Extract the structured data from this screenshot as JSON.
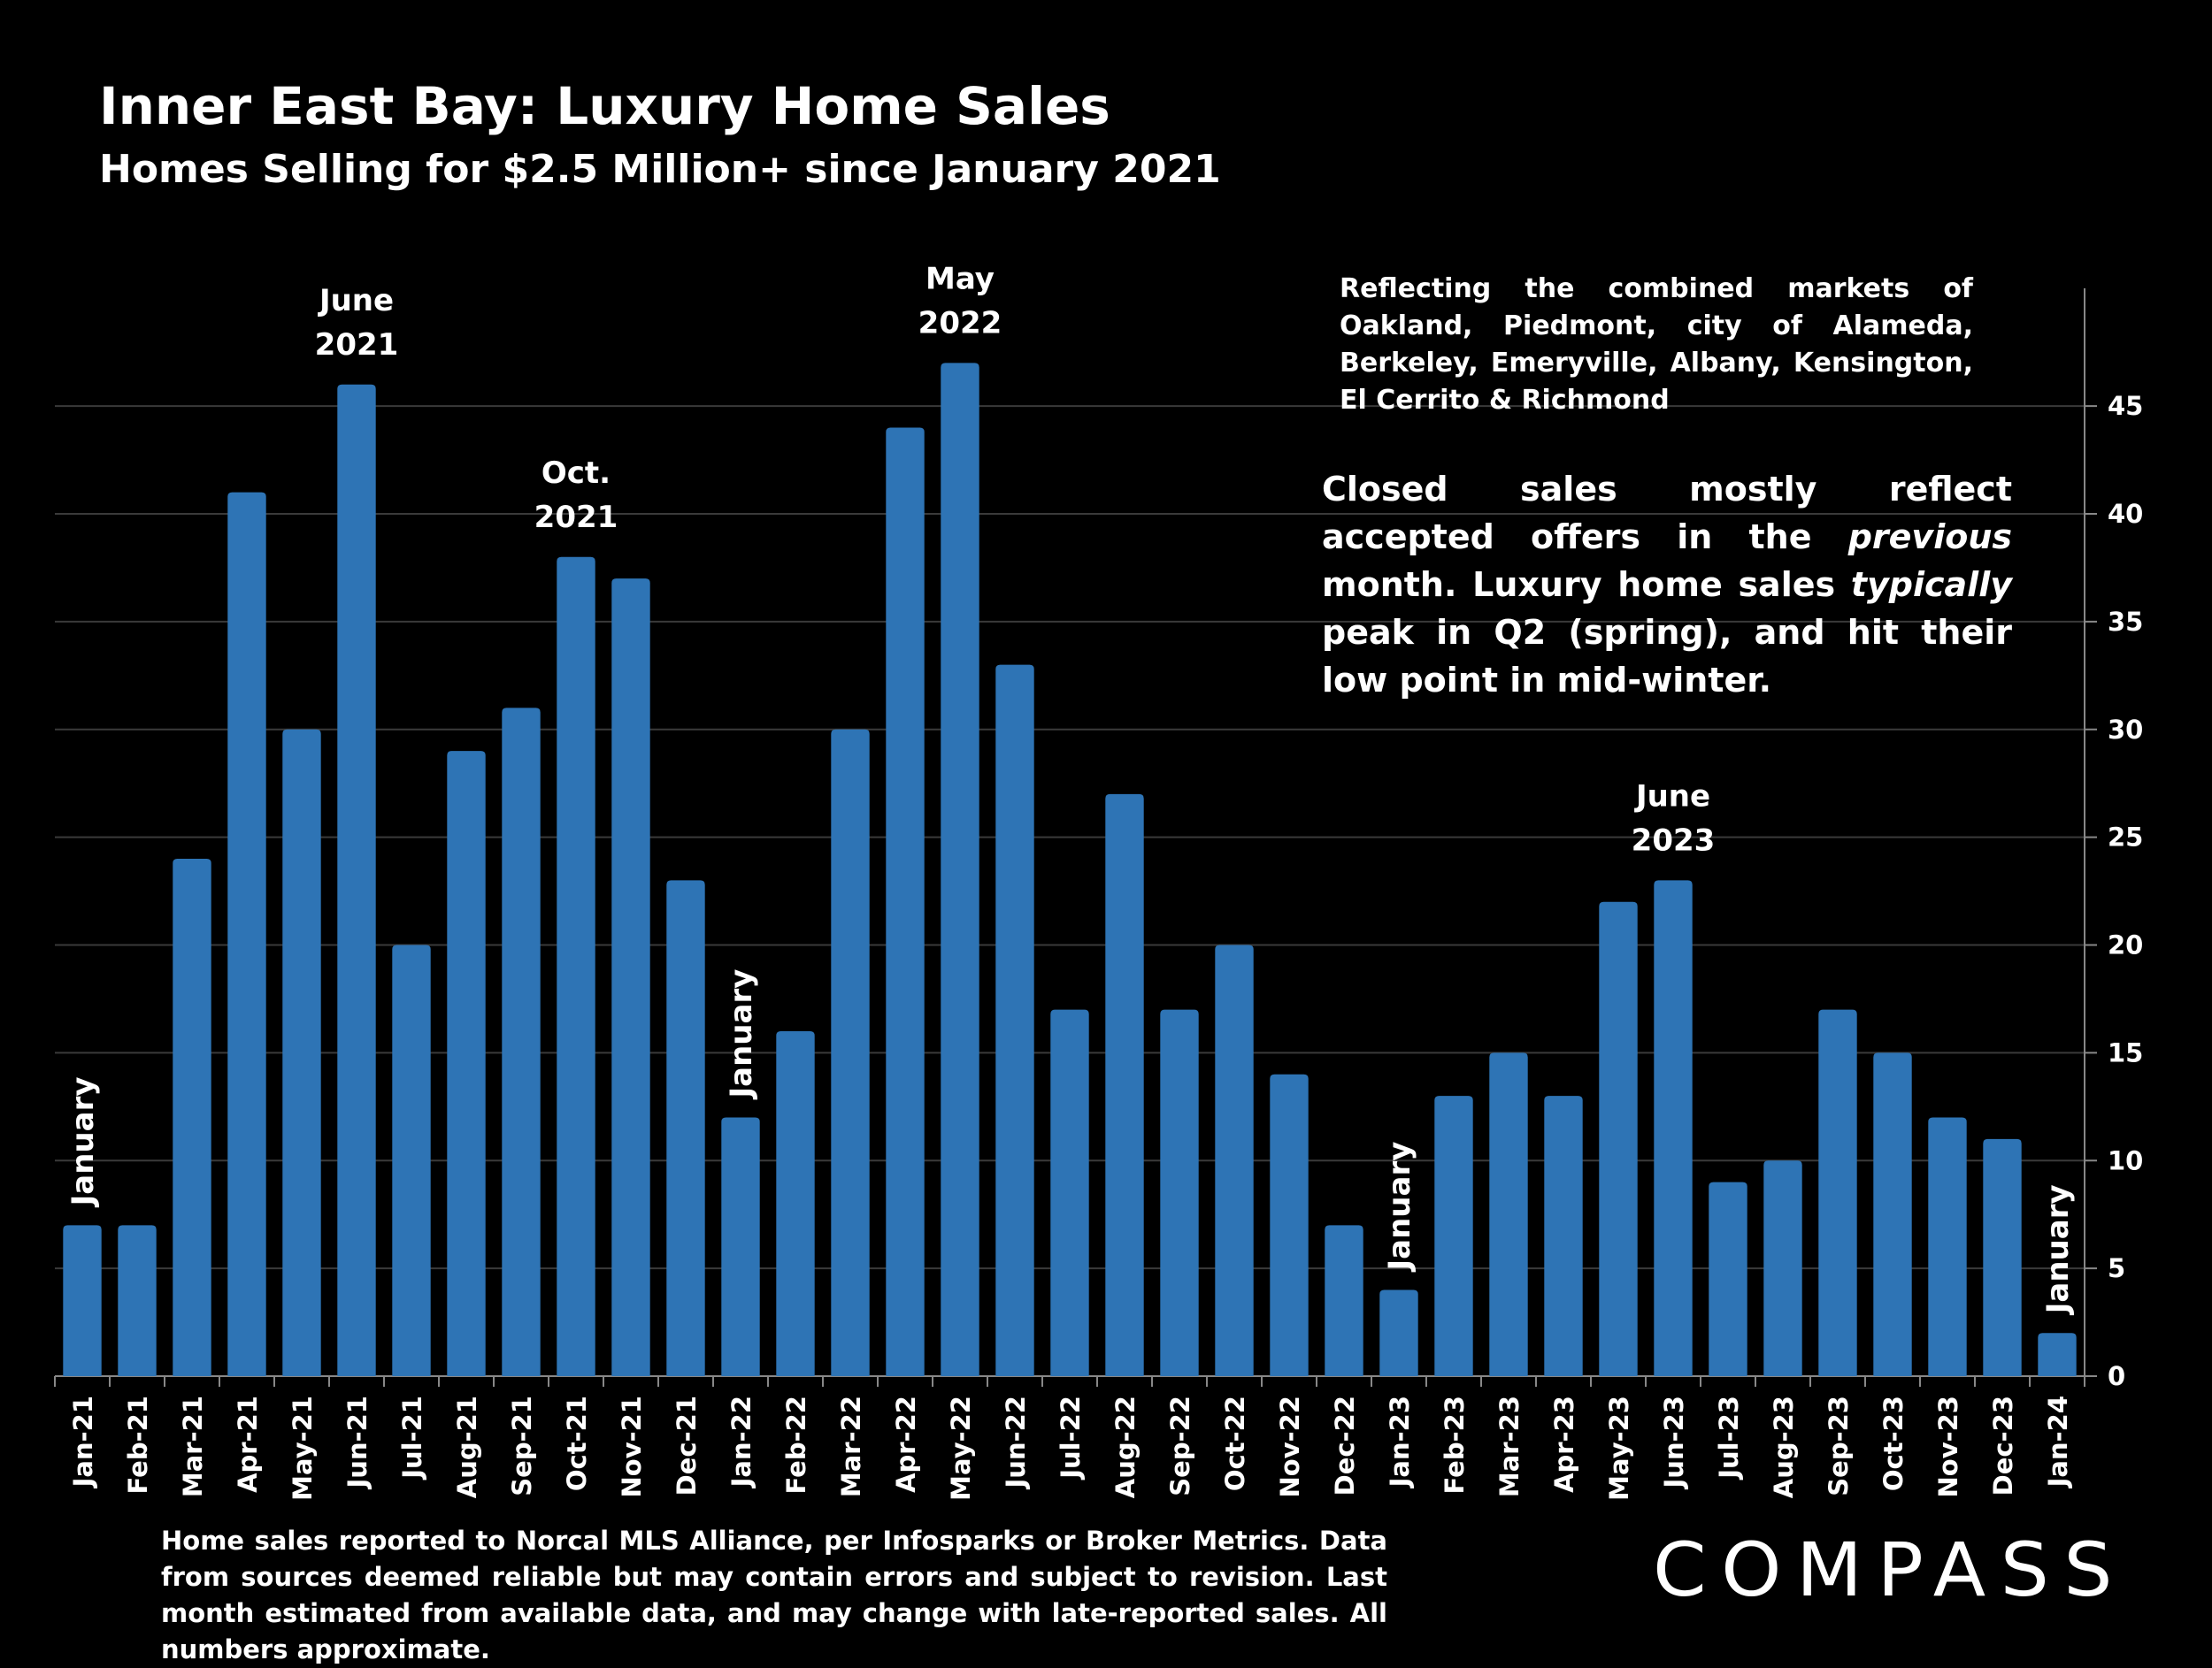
{
  "title": "Inner East Bay: Luxury Home Sales",
  "subtitle": "Homes Selling for $2.5 Million+ since January 2021",
  "notes": {
    "region": "Reflecting the combined markets of Oakland, Piedmont, city of Alameda, Berkeley, Emeryville, Albany, Kensington, El Cerrito & Richmond",
    "main_prefix": "Closed sales mostly reflect accepted offers in the ",
    "main_em1": "previous",
    "main_mid": " month. Luxury home sales ",
    "main_em2": "typically",
    "main_suffix": " peak in Q2 (spring), and hit their low point in mid-winter.",
    "footnote": "Home sales reported to Norcal MLS Alliance, per Infosparks or Broker Metrics. Data from sources deemed reliable but may contain errors and subject to revision.  Last month estimated from available data, and may change with late-reported sales. All numbers approximate."
  },
  "brand": {
    "logo_text": "COMPASS"
  },
  "colors": {
    "bar": "#2E74B5",
    "background": "#000000",
    "text": "#FFFFFF",
    "gridline": "#3a3a3a"
  },
  "chart_data": {
    "type": "bar",
    "title": "Inner East Bay: Luxury Home Sales",
    "xlabel": "",
    "ylabel": "",
    "ylim": [
      0,
      48
    ],
    "yticks": [
      0,
      5,
      10,
      15,
      20,
      25,
      30,
      35,
      40,
      45
    ],
    "y_axis_side": "right",
    "grid": true,
    "categories": [
      "Jan-21",
      "Feb-21",
      "Mar-21",
      "Apr-21",
      "May-21",
      "Jun-21",
      "Jul-21",
      "Aug-21",
      "Sep-21",
      "Oct-21",
      "Nov-21",
      "Dec-21",
      "Jan-22",
      "Feb-22",
      "Mar-22",
      "Apr-22",
      "May-22",
      "Jun-22",
      "Jul-22",
      "Aug-22",
      "Sep-22",
      "Oct-22",
      "Nov-22",
      "Dec-22",
      "Jan-23",
      "Feb-23",
      "Mar-23",
      "Apr-23",
      "May-23",
      "Jun-23",
      "Jul-23",
      "Aug-23",
      "Sep-23",
      "Oct-23",
      "Nov-23",
      "Dec-23",
      "Jan-24"
    ],
    "values": [
      7,
      7,
      24,
      41,
      30,
      46,
      20,
      29,
      31,
      38,
      37,
      23,
      12,
      16,
      30,
      44,
      47,
      33,
      17,
      27,
      17,
      20,
      14,
      7,
      4,
      13,
      15,
      13,
      22,
      23,
      9,
      10,
      17,
      15,
      12,
      11,
      2
    ],
    "annotations": [
      {
        "index": 0,
        "text": "January",
        "orientation": "vertical"
      },
      {
        "index": 5,
        "text": "June 2021",
        "lines": [
          "June",
          "2021"
        ]
      },
      {
        "index": 9,
        "text": "Oct. 2021",
        "lines": [
          "Oct.",
          "2021"
        ]
      },
      {
        "index": 12,
        "text": "January",
        "orientation": "vertical"
      },
      {
        "index": 16,
        "text": "May 2022",
        "lines": [
          "May",
          "2022"
        ]
      },
      {
        "index": 24,
        "text": "January",
        "orientation": "vertical"
      },
      {
        "index": 29,
        "text": "June 2023",
        "lines": [
          "June",
          "2023"
        ]
      },
      {
        "index": 36,
        "text": "January",
        "orientation": "vertical"
      }
    ]
  }
}
